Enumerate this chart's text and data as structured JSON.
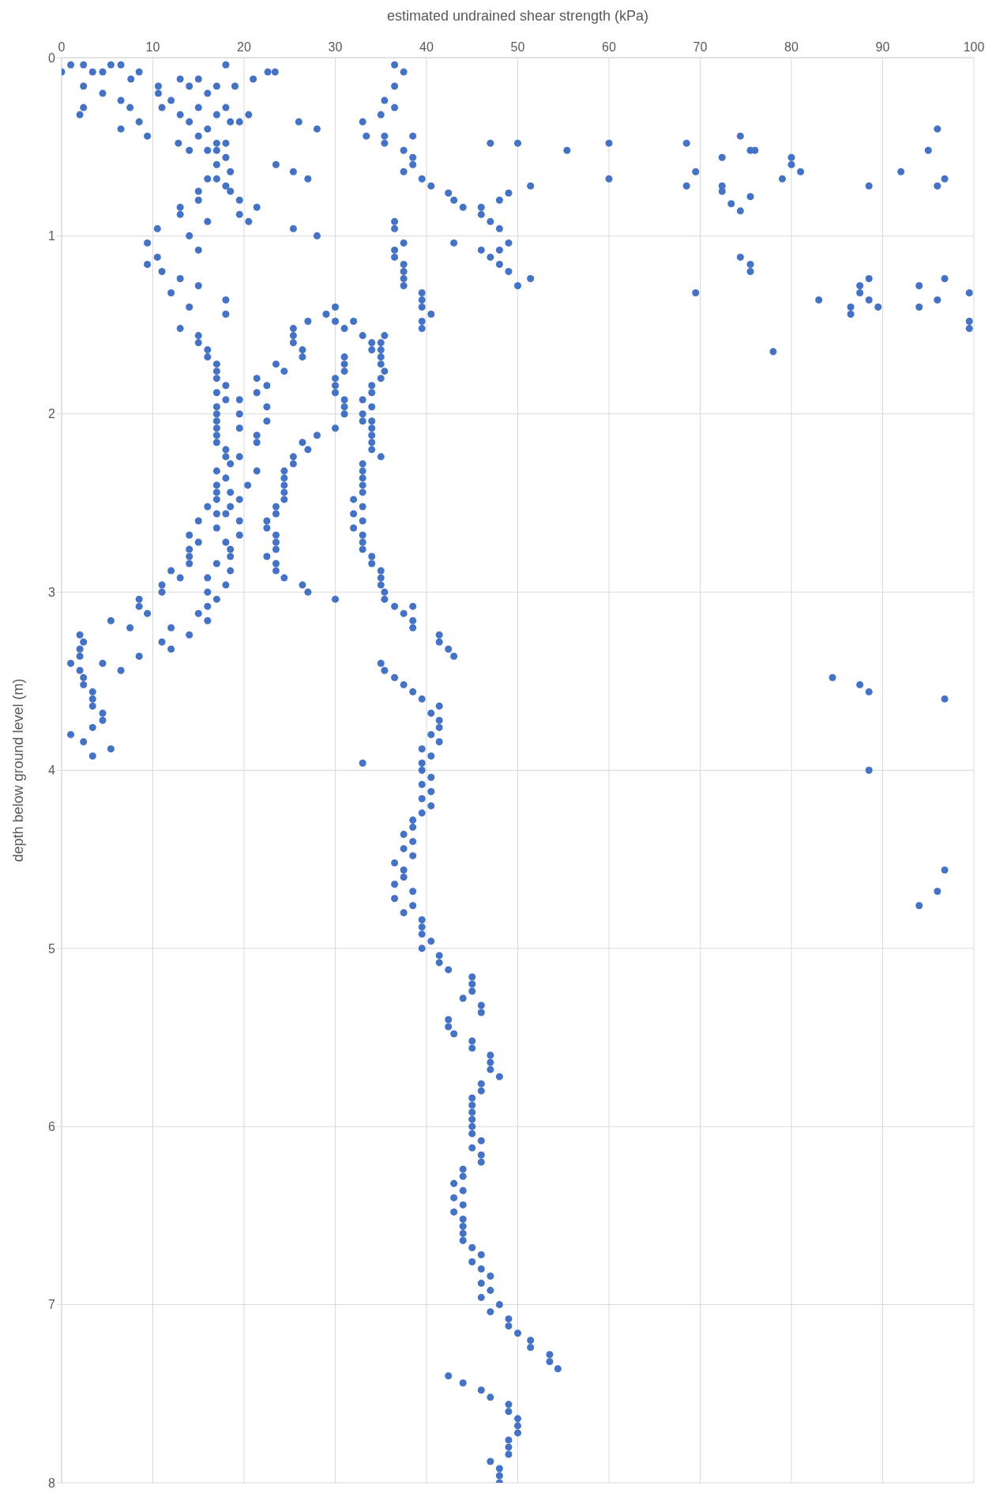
{
  "chart_data": {
    "type": "scatter",
    "xlabel": "estimated undrained shear strength  (kPa)",
    "ylabel": "depth below ground level (m)",
    "color": "#4472c4",
    "marker": "circle",
    "grid": true,
    "xlim": [
      0,
      100
    ],
    "ylim": [
      8,
      0
    ],
    "xticks": [
      0,
      10,
      20,
      30,
      40,
      50,
      60,
      70,
      80,
      90,
      100
    ],
    "yticks": [
      0,
      1,
      2,
      3,
      4,
      5,
      6,
      7,
      8
    ],
    "x": [
      0,
      1,
      2.4,
      3.4,
      4.5,
      5.4,
      6.5,
      8.5,
      7.6,
      2.4,
      2.4,
      2,
      4.5,
      10.6,
      10.6,
      11,
      12,
      13,
      14,
      15,
      16,
      17,
      18,
      19,
      21,
      22.6,
      23.4,
      20.5,
      6.5,
      7.5,
      8.5,
      6.5,
      9.4,
      13,
      14,
      15,
      16,
      17,
      18,
      18.5,
      19.5,
      12.8,
      15,
      14,
      16,
      17,
      18,
      26,
      28,
      33,
      33.4,
      35,
      35.4,
      36.5,
      37.5,
      36.5,
      36.5,
      35.4,
      38.5,
      35.4,
      47,
      50,
      55.4,
      60,
      68.5,
      74.4,
      75.5,
      76,
      72.4,
      80,
      80,
      81,
      92,
      95,
      96,
      96.8,
      96,
      88.5,
      79,
      69.5,
      68.5,
      72.4,
      72.4,
      75.5,
      73.4,
      74.4,
      60,
      51.4,
      17,
      18,
      17,
      18.5,
      16,
      17,
      18,
      18.5,
      15,
      15,
      19.5,
      21.4,
      13,
      13,
      19.5,
      20.5,
      16,
      23.5,
      25.4,
      27,
      25.4,
      28,
      10.5,
      37.5,
      38.5,
      38.5,
      37.5,
      39.5,
      40.5,
      42.4,
      43,
      44,
      46,
      46,
      47,
      48,
      49,
      48,
      49,
      48,
      47,
      48,
      49,
      50,
      51.4,
      46,
      43,
      36.5,
      36.5,
      37.5,
      36.5,
      36.5,
      37.5,
      37.5,
      37.5,
      37.5,
      74.4,
      75.5,
      75.5,
      88.5,
      87.5,
      87.5,
      94,
      96.8,
      99.5,
      69.5,
      83,
      88.5,
      96,
      86.5,
      89.5,
      94,
      86.5,
      99.5,
      99.5,
      78,
      9.4,
      10.5,
      9.4,
      11,
      13,
      15,
      12,
      18,
      14,
      18,
      13,
      14,
      15,
      39.5,
      39.5,
      39.5,
      40.5,
      39.5,
      39.5,
      30,
      29,
      30,
      32,
      31,
      27,
      25.4,
      25.4,
      25.4,
      26.4,
      26.4,
      33,
      35.4,
      34,
      35,
      34,
      35,
      35,
      35,
      35.4,
      35,
      31,
      31,
      31,
      30,
      30,
      30,
      34,
      34,
      34,
      33,
      31,
      31,
      31,
      33,
      33,
      34,
      34,
      34,
      34,
      34,
      35,
      30,
      15,
      15,
      16,
      16,
      17,
      17,
      17,
      18,
      17,
      18,
      19.5,
      17,
      17,
      19.5,
      17,
      17,
      19.5,
      17,
      17,
      18,
      18,
      18.5,
      19.5,
      21.4,
      22.5,
      21.4,
      22.5,
      22.5,
      21.4,
      21.4,
      23.5,
      24.4,
      28,
      26.4,
      27,
      25.4,
      25.4,
      17,
      18,
      21.4,
      20.4,
      17,
      18.5,
      17,
      17,
      19.5,
      16,
      18.5,
      17,
      18,
      24.4,
      24.4,
      24.4,
      24.4,
      24.4,
      23.5,
      23.5,
      22.5,
      22.5,
      23.5,
      23.5,
      23.5,
      22.5,
      23.5,
      23.5,
      24.4,
      26.4,
      27,
      15,
      17,
      19.5,
      19.5,
      14,
      15,
      14,
      14,
      14,
      18,
      18.5,
      18.5,
      17,
      18.5,
      12,
      13,
      16,
      18,
      11,
      11,
      16,
      17,
      33,
      33,
      33,
      33,
      33,
      32,
      33,
      32,
      33,
      32,
      33,
      33,
      33,
      34,
      34,
      35,
      35,
      35,
      35.4,
      35.4,
      30,
      8.5,
      8.5,
      9.4,
      16,
      15,
      16,
      12,
      7.5,
      5.4,
      14,
      2,
      2.4,
      11,
      2,
      12,
      2,
      8.5,
      1,
      4.5,
      2,
      6.5,
      2.4,
      2.4,
      3.4,
      3.4,
      3.4,
      4.5,
      4.5,
      3.4,
      1,
      2.4,
      5.4,
      3.4,
      36.5,
      38.5,
      37.5,
      38.5,
      38.5,
      41.4,
      41.4,
      42.4,
      43,
      35,
      35.4,
      36.5,
      37.5,
      38.5,
      39.5,
      41.4,
      40.5,
      41.4,
      41.4,
      40.5,
      41.4,
      39.5,
      40.5,
      39.5,
      33,
      84.5,
      87.5,
      88.5,
      96.8,
      88.5,
      96.8,
      96,
      94,
      39.5,
      40.5,
      39.5,
      40.5,
      39.5,
      40.5,
      39.5,
      38.5,
      38.5,
      37.5,
      38.5,
      37.5,
      38.5,
      36.5,
      37.5,
      37.5,
      36.5,
      38.5,
      36.5,
      38.5,
      37.5,
      39.5,
      39.5,
      39.5,
      40.5,
      39.5,
      41.4,
      41.4,
      42.4,
      45,
      45,
      45,
      44,
      46,
      46,
      42.4,
      42.4,
      43,
      45,
      45,
      47,
      47,
      47,
      48,
      46,
      46,
      45,
      45,
      45,
      45,
      45,
      45,
      46,
      45,
      46,
      46,
      44,
      44,
      43,
      44,
      43,
      44,
      43,
      44,
      44,
      44,
      44,
      45,
      46,
      45,
      46,
      47,
      46,
      47,
      46,
      48,
      47,
      49,
      49,
      50,
      51.4,
      51.4,
      53.5,
      53.5,
      54.4,
      42.4,
      44,
      46,
      47,
      49,
      49,
      50,
      50,
      50,
      49,
      49,
      49,
      47,
      48,
      48,
      48
    ],
    "values": [
      0.08,
      0.04,
      0.04,
      0.08,
      0.08,
      0.04,
      0.04,
      0.08,
      0.12,
      0.16,
      0.28,
      0.32,
      0.2,
      0.16,
      0.2,
      0.28,
      0.24,
      0.12,
      0.16,
      0.12,
      0.2,
      0.16,
      0.04,
      0.16,
      0.12,
      0.08,
      0.08,
      0.32,
      0.24,
      0.28,
      0.36,
      0.4,
      0.44,
      0.32,
      0.36,
      0.28,
      0.4,
      0.32,
      0.28,
      0.36,
      0.36,
      0.48,
      0.44,
      0.52,
      0.52,
      0.48,
      0.48,
      0.36,
      0.4,
      0.36,
      0.44,
      0.32,
      0.44,
      0.04,
      0.08,
      0.16,
      0.28,
      0.24,
      0.44,
      0.48,
      0.48,
      0.48,
      0.52,
      0.48,
      0.48,
      0.44,
      0.52,
      0.52,
      0.56,
      0.56,
      0.6,
      0.64,
      0.64,
      0.52,
      0.4,
      0.68,
      0.72,
      0.72,
      0.68,
      0.64,
      0.72,
      0.72,
      0.75,
      0.78,
      0.82,
      0.86,
      0.68,
      0.72,
      0.52,
      0.56,
      0.6,
      0.64,
      0.68,
      0.68,
      0.72,
      0.75,
      0.75,
      0.8,
      0.8,
      0.84,
      0.84,
      0.88,
      0.88,
      0.92,
      0.92,
      0.6,
      0.64,
      0.68,
      0.96,
      1.0,
      0.96,
      0.64,
      0.6,
      0.56,
      0.52,
      0.68,
      0.72,
      0.76,
      0.8,
      0.84,
      0.84,
      0.88,
      0.92,
      0.8,
      0.76,
      0.96,
      1.04,
      1.08,
      1.12,
      1.16,
      1.2,
      1.28,
      1.24,
      1.08,
      1.04,
      0.92,
      0.96,
      1.04,
      1.08,
      1.12,
      1.16,
      1.2,
      1.24,
      1.28,
      1.12,
      1.16,
      1.2,
      1.24,
      1.28,
      1.32,
      1.28,
      1.24,
      1.32,
      1.32,
      1.36,
      1.36,
      1.36,
      1.4,
      1.4,
      1.4,
      1.44,
      1.48,
      1.52,
      1.65,
      1.04,
      1.12,
      1.16,
      1.2,
      1.24,
      1.28,
      1.32,
      1.36,
      1.4,
      1.44,
      1.52,
      1.0,
      1.08,
      1.32,
      1.36,
      1.4,
      1.44,
      1.48,
      1.52,
      1.4,
      1.44,
      1.48,
      1.48,
      1.52,
      1.48,
      1.52,
      1.56,
      1.6,
      1.64,
      1.68,
      1.56,
      1.56,
      1.6,
      1.6,
      1.64,
      1.64,
      1.68,
      1.72,
      1.76,
      1.8,
      1.68,
      1.72,
      1.76,
      1.8,
      1.84,
      1.88,
      1.84,
      1.88,
      1.96,
      1.92,
      1.92,
      1.96,
      2.0,
      2.0,
      2.04,
      2.04,
      2.08,
      2.12,
      2.16,
      2.2,
      2.24,
      2.08,
      1.56,
      1.6,
      1.64,
      1.68,
      1.72,
      1.76,
      1.8,
      1.84,
      1.88,
      1.92,
      1.92,
      1.96,
      2.0,
      2.0,
      2.04,
      2.08,
      2.08,
      2.12,
      2.16,
      2.2,
      2.24,
      2.28,
      2.24,
      1.8,
      1.84,
      1.88,
      1.96,
      2.04,
      2.12,
      2.16,
      1.72,
      1.76,
      2.12,
      2.16,
      2.2,
      2.24,
      2.28,
      2.32,
      2.36,
      2.32,
      2.4,
      2.4,
      2.44,
      2.44,
      2.48,
      2.48,
      2.52,
      2.52,
      2.56,
      2.56,
      2.32,
      2.36,
      2.4,
      2.44,
      2.48,
      2.52,
      2.56,
      2.6,
      2.64,
      2.68,
      2.72,
      2.76,
      2.8,
      2.84,
      2.88,
      2.92,
      2.96,
      3.0,
      2.6,
      2.64,
      2.6,
      2.68,
      2.68,
      2.72,
      2.76,
      2.8,
      2.84,
      2.72,
      2.76,
      2.8,
      2.84,
      2.88,
      2.88,
      2.92,
      2.92,
      2.96,
      2.96,
      3.0,
      3.0,
      3.04,
      2.28,
      2.32,
      2.36,
      2.4,
      2.44,
      2.48,
      2.52,
      2.56,
      2.6,
      2.64,
      2.68,
      2.72,
      2.76,
      2.8,
      2.84,
      2.88,
      2.92,
      2.96,
      3.0,
      3.04,
      3.04,
      3.04,
      3.08,
      3.12,
      3.08,
      3.12,
      3.16,
      3.2,
      3.2,
      3.16,
      3.24,
      3.24,
      3.28,
      3.28,
      3.32,
      3.32,
      3.36,
      3.36,
      3.4,
      3.4,
      3.44,
      3.44,
      3.48,
      3.52,
      3.56,
      3.6,
      3.64,
      3.68,
      3.72,
      3.76,
      3.8,
      3.84,
      3.88,
      3.92,
      3.08,
      3.08,
      3.12,
      3.16,
      3.2,
      3.24,
      3.28,
      3.32,
      3.36,
      3.4,
      3.44,
      3.48,
      3.52,
      3.56,
      3.6,
      3.64,
      3.68,
      3.72,
      3.76,
      3.8,
      3.84,
      3.88,
      3.92,
      3.96,
      3.96,
      3.48,
      3.52,
      3.56,
      3.6,
      4.0,
      4.56,
      4.68,
      4.76,
      4.0,
      4.04,
      4.08,
      4.12,
      4.16,
      4.2,
      4.24,
      4.28,
      4.32,
      4.36,
      4.4,
      4.44,
      4.48,
      4.52,
      4.56,
      4.6,
      4.64,
      4.68,
      4.72,
      4.76,
      4.8,
      4.84,
      4.88,
      4.92,
      4.96,
      5.0,
      5.04,
      5.08,
      5.12,
      5.16,
      5.2,
      5.24,
      5.28,
      5.32,
      5.36,
      5.4,
      5.44,
      5.48,
      5.52,
      5.56,
      5.6,
      5.64,
      5.68,
      5.72,
      5.76,
      5.8,
      5.84,
      5.88,
      5.92,
      5.96,
      6.0,
      6.04,
      6.08,
      6.12,
      6.16,
      6.2,
      6.24,
      6.28,
      6.32,
      6.36,
      6.4,
      6.44,
      6.48,
      6.52,
      6.56,
      6.6,
      6.64,
      6.68,
      6.72,
      6.76,
      6.8,
      6.84,
      6.88,
      6.92,
      6.96,
      7.0,
      7.04,
      7.08,
      7.12,
      7.16,
      7.2,
      7.24,
      7.28,
      7.32,
      7.36,
      7.4,
      7.44,
      7.48,
      7.52,
      7.56,
      7.6,
      7.64,
      7.68,
      7.72,
      7.76,
      7.8,
      7.84,
      7.88,
      7.92,
      7.96,
      8.0
    ]
  }
}
